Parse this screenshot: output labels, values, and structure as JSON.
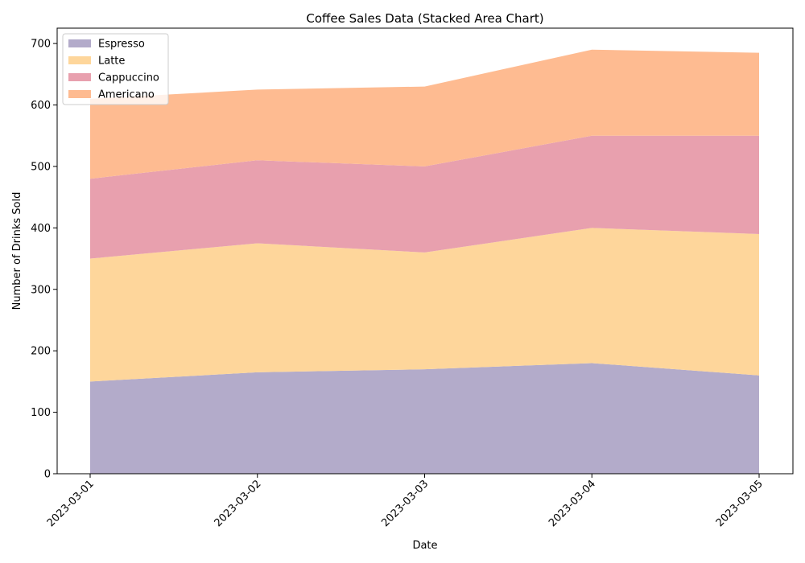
{
  "chart_data": {
    "type": "area",
    "stacked": true,
    "title": "Coffee Sales Data (Stacked Area Chart)",
    "xlabel": "Date",
    "ylabel": "Number of Drinks Sold",
    "categories": [
      "2023-03-01",
      "2023-03-02",
      "2023-03-03",
      "2023-03-04",
      "2023-03-05"
    ],
    "ylim": [
      0,
      725
    ],
    "yticks": [
      0,
      100,
      200,
      300,
      400,
      500,
      600,
      700
    ],
    "grid": false,
    "legend_position": "top-left",
    "series": [
      {
        "name": "Espresso",
        "values": [
          150,
          165,
          170,
          180,
          160
        ],
        "color": "#b3abca"
      },
      {
        "name": "Latte",
        "values": [
          200,
          210,
          190,
          220,
          230
        ],
        "color": "#fed69b"
      },
      {
        "name": "Cappuccino",
        "values": [
          130,
          135,
          140,
          150,
          160
        ],
        "color": "#e8a0ae"
      },
      {
        "name": "Americano",
        "values": [
          130,
          115,
          130,
          140,
          135
        ],
        "color": "#febb91"
      }
    ]
  }
}
